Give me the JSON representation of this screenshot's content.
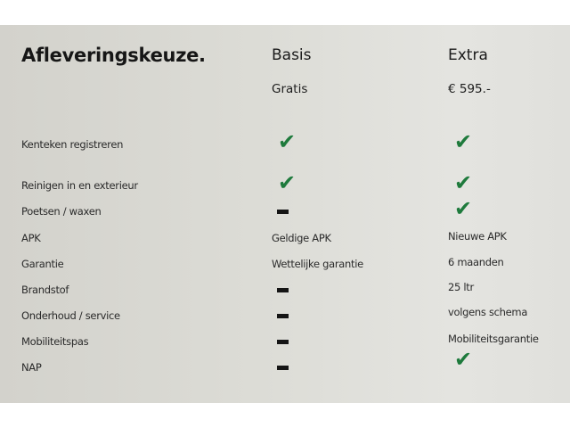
{
  "title": "Afleveringskeuze.",
  "columns": [
    {
      "name": "Basis",
      "price": "Gratis"
    },
    {
      "name": "Extra",
      "price": "€ 595.-"
    }
  ],
  "icons": {
    "check": "check-icon",
    "dash": "dash-icon"
  },
  "colors": {
    "check": "#1e7a3c"
  },
  "rows": [
    {
      "label": "Kenteken registreren",
      "basis": "check",
      "extra": "check"
    },
    {
      "label": "Reinigen in en exterieur",
      "basis": "check",
      "extra": "check"
    },
    {
      "label": "Poetsen / waxen",
      "basis": "dash",
      "extra": "check"
    },
    {
      "label": "APK",
      "basis": "Geldige APK",
      "extra": "Nieuwe APK"
    },
    {
      "label": "Garantie",
      "basis": "Wettelijke garantie",
      "extra": "6 maanden"
    },
    {
      "label": "Brandstof",
      "basis": "dash",
      "extra": "25 ltr"
    },
    {
      "label": "Onderhoud / service",
      "basis": "dash",
      "extra": "volgens schema"
    },
    {
      "label": "Mobiliteitspas",
      "basis": "dash",
      "extra": "Mobiliteitsgarantie"
    },
    {
      "label": "NAP",
      "basis": "dash",
      "extra": "check"
    }
  ]
}
